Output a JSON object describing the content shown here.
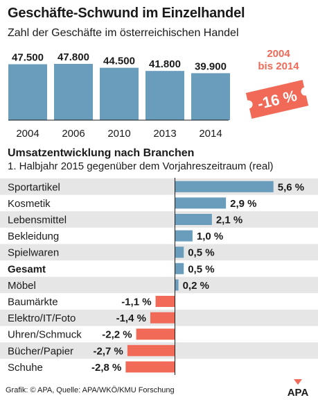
{
  "header": {
    "title": "Geschäfte-Schwund im Einzelhandel",
    "subtitle": "Zahl der Geschäfte im österreichischen Handel"
  },
  "badge": {
    "years_line1": "2004",
    "years_line2": "bis 2014",
    "change": "-16 %",
    "color": "#f06a57"
  },
  "section2": {
    "title": "Umsatzentwicklung nach Branchen",
    "subtitle": "1. Halbjahr 2015 gegenüber dem Vorjahreszeitraum (real)"
  },
  "footer": {
    "source": "Grafik: © APA, Quelle: APA/WKÖ/KMU Forschung",
    "logo_text": "APA"
  },
  "colors": {
    "bar_blue": "#6a9cbc",
    "bar_red": "#f06a57",
    "row_shade": "#e6e6e6"
  },
  "chart_data": [
    {
      "type": "bar",
      "title": "Geschäfte-Schwund im Einzelhandel",
      "subtitle": "Zahl der Geschäfte im österreichischen Handel",
      "categories": [
        "2004",
        "2006",
        "2010",
        "2013",
        "2014"
      ],
      "values": [
        47500,
        47800,
        44500,
        41800,
        39900
      ],
      "value_labels": [
        "47.500",
        "47.800",
        "44.500",
        "41.800",
        "39.900"
      ],
      "grid": false
    },
    {
      "type": "bar",
      "orientation": "horizontal",
      "title": "Umsatzentwicklung nach Branchen",
      "subtitle": "1. Halbjahr 2015 gegenüber dem Vorjahreszeitraum (real)",
      "categories": [
        "Sportartikel",
        "Kosmetik",
        "Lebensmittel",
        "Bekleidung",
        "Spielwaren",
        "Gesamt",
        "Möbel",
        "Baumärkte",
        "Elektro/IT/Foto",
        "Uhren/Schmuck",
        "Bücher/Papier",
        "Schuhe"
      ],
      "values": [
        5.6,
        2.9,
        2.1,
        1.0,
        0.5,
        0.5,
        0.2,
        -1.1,
        -1.4,
        -2.2,
        -2.7,
        -2.8
      ],
      "value_labels": [
        "5,6 %",
        "2,9 %",
        "2,1 %",
        "1,0 %",
        "0,5 %",
        "0,5 %",
        "0,2 %",
        "-1,1 %",
        "-1,4 %",
        "-2,2 %",
        "-2,7 %",
        "-2,8 %"
      ],
      "bold_categories": [
        "Gesamt"
      ],
      "grid": false
    }
  ]
}
